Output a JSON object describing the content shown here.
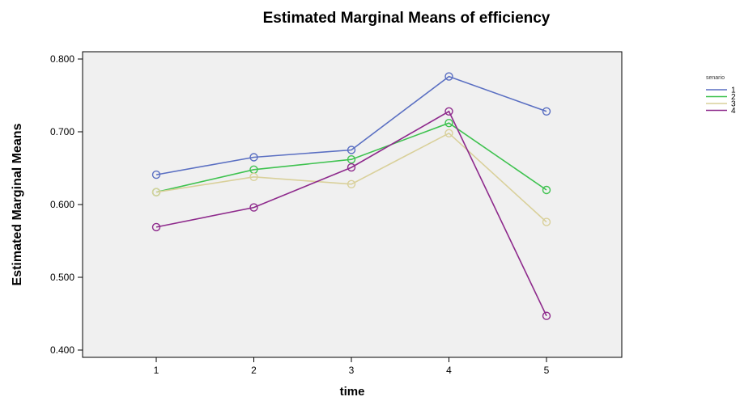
{
  "chart_data": {
    "type": "line",
    "title": "Estimated Marginal Means of efficiency",
    "xlabel": "time",
    "ylabel": "Estimated Marginal Means",
    "categories": [
      "1",
      "2",
      "3",
      "4",
      "5"
    ],
    "ylim": [
      0.39,
      0.81
    ],
    "yticks": [
      "0.400",
      "0.500",
      "0.600",
      "0.700",
      "0.800"
    ],
    "grid": false,
    "legend": {
      "title": "senario",
      "placement": "top-right"
    },
    "series": [
      {
        "name": "1",
        "color": "#5a6fc2",
        "values": [
          0.641,
          0.665,
          0.675,
          0.776,
          0.728
        ]
      },
      {
        "name": "2",
        "color": "#3ec24f",
        "values": [
          0.617,
          0.648,
          0.662,
          0.712,
          0.62
        ]
      },
      {
        "name": "3",
        "color": "#d9d09a",
        "values": [
          0.617,
          0.638,
          0.628,
          0.698,
          0.576
        ]
      },
      {
        "name": "4",
        "color": "#8e2a8c",
        "values": [
          0.569,
          0.596,
          0.651,
          0.728,
          0.447
        ]
      }
    ]
  }
}
